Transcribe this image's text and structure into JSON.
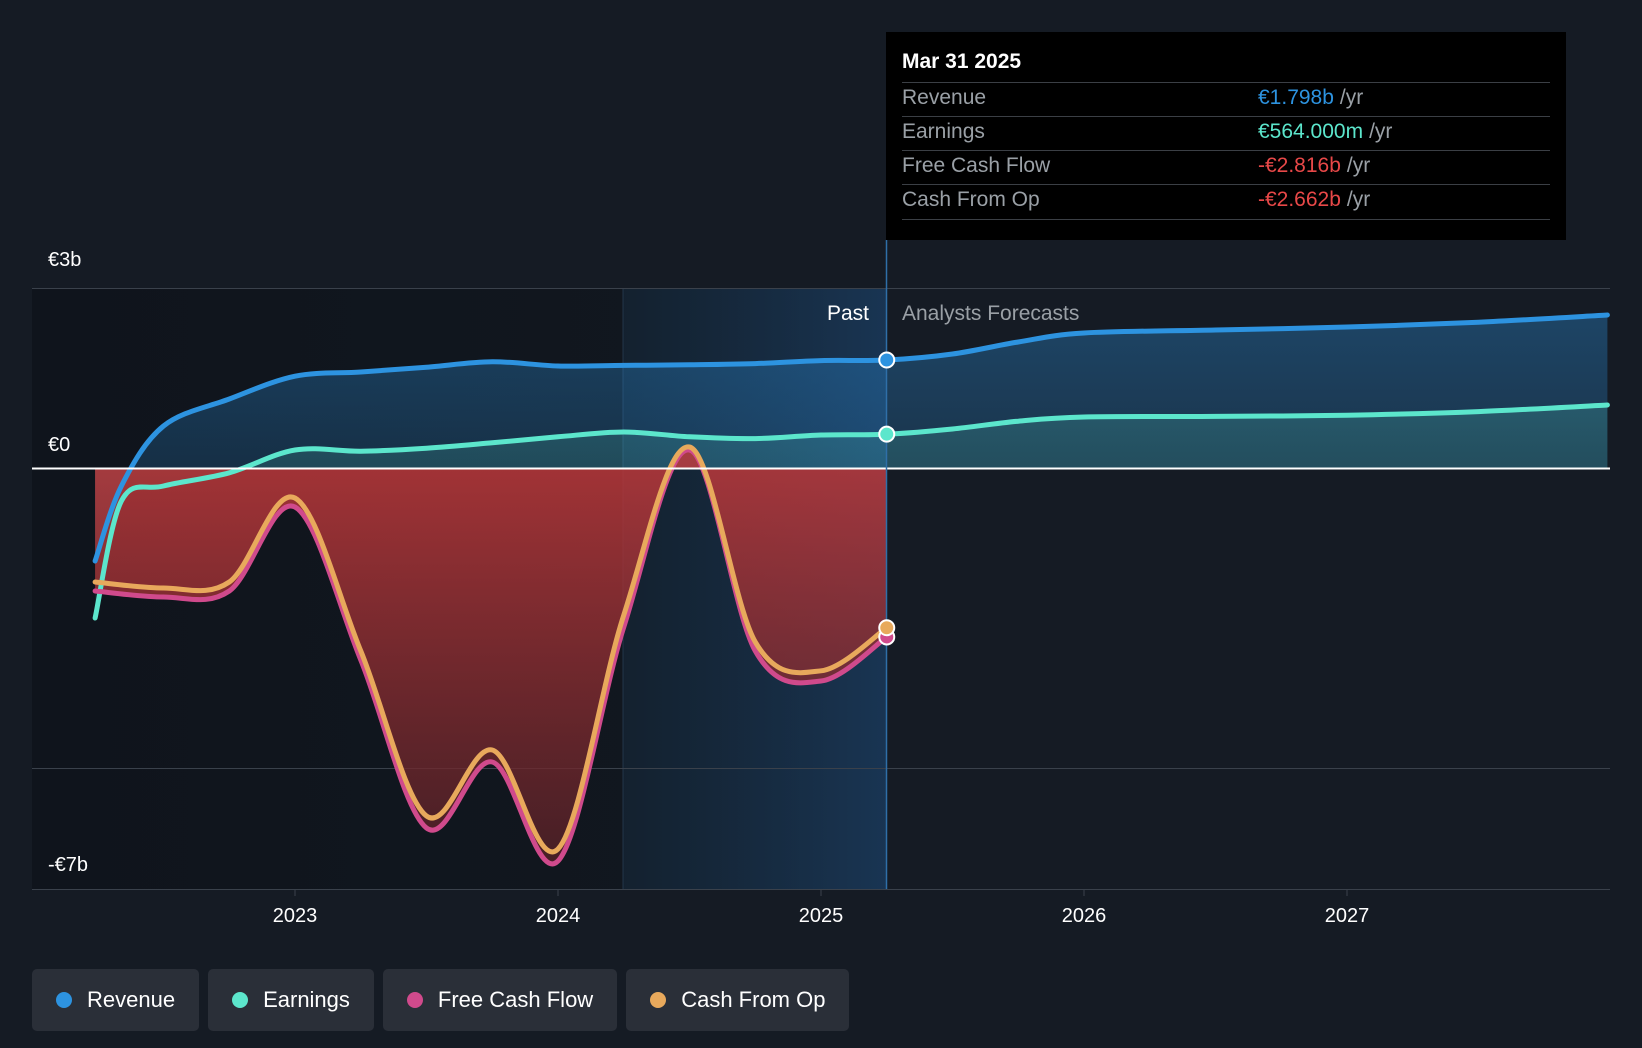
{
  "chart_data": {
    "type": "line",
    "x_ticks": [
      "2023",
      "2024",
      "2025",
      "2026",
      "2027"
    ],
    "y_labels": {
      "top": "€3b",
      "zero": "€0",
      "bottom": "-€7b"
    },
    "ylim": [
      -7,
      3
    ],
    "past_label": "Past",
    "forecast_label": "Analysts Forecasts",
    "series": [
      {
        "name": "Revenue",
        "color": "#2d93e0",
        "x": [
          2022.24,
          2022.34,
          2022.5,
          2022.75,
          2023.0,
          2023.25,
          2023.5,
          2023.75,
          2024.0,
          2024.25,
          2024.5,
          2024.75,
          2025.0,
          2025.25,
          2025.5,
          2025.75,
          2026.0,
          2026.5,
          2027.0,
          2027.5,
          2027.99
        ],
        "values": [
          -1.55,
          -0.3,
          0.7,
          1.15,
          1.53,
          1.6,
          1.68,
          1.77,
          1.7,
          1.71,
          1.72,
          1.74,
          1.79,
          1.8,
          1.9,
          2.1,
          2.25,
          2.3,
          2.35,
          2.43,
          2.55
        ]
      },
      {
        "name": "Earnings",
        "color": "#5ce6cc",
        "x": [
          2022.24,
          2022.34,
          2022.5,
          2022.75,
          2023.0,
          2023.25,
          2023.5,
          2023.75,
          2024.0,
          2024.25,
          2024.5,
          2024.75,
          2025.0,
          2025.25,
          2025.5,
          2025.75,
          2026.0,
          2026.5,
          2027.0,
          2027.5,
          2027.99
        ],
        "values": [
          -2.5,
          -0.55,
          -0.3,
          -0.08,
          0.3,
          0.28,
          0.33,
          0.42,
          0.52,
          0.6,
          0.52,
          0.49,
          0.55,
          0.564,
          0.65,
          0.78,
          0.85,
          0.86,
          0.88,
          0.94,
          1.05
        ]
      },
      {
        "name": "Free Cash Flow",
        "color": "#d04a8c",
        "x": [
          2022.24,
          2022.5,
          2022.75,
          2023.0,
          2023.25,
          2023.5,
          2023.75,
          2024.0,
          2024.25,
          2024.5,
          2024.75,
          2025.0,
          2025.25
        ],
        "values": [
          -2.05,
          -2.15,
          -2.05,
          -0.65,
          -3.2,
          -6.0,
          -4.9,
          -6.55,
          -2.65,
          0.3,
          -3.05,
          -3.55,
          -2.816
        ]
      },
      {
        "name": "Cash From Op",
        "color": "#e8a95c",
        "x": [
          2022.24,
          2022.5,
          2022.75,
          2023.0,
          2023.25,
          2023.5,
          2023.75,
          2024.0,
          2024.25,
          2024.5,
          2024.75,
          2025.0,
          2025.25
        ],
        "values": [
          -1.9,
          -2.0,
          -1.9,
          -0.5,
          -3.05,
          -5.8,
          -4.7,
          -6.35,
          -2.45,
          0.35,
          -2.9,
          -3.38,
          -2.662
        ]
      }
    ]
  },
  "tooltip": {
    "date": "Mar 31 2025",
    "rows": [
      {
        "label": "Revenue",
        "value": "€1.798b",
        "unit": "/yr",
        "color": "#2d93e0"
      },
      {
        "label": "Earnings",
        "value": "€564.000m",
        "unit": "/yr",
        "color": "#5ce6cc"
      },
      {
        "label": "Free Cash Flow",
        "value": "-€2.816b",
        "unit": "/yr",
        "color": "#e84848"
      },
      {
        "label": "Cash From Op",
        "value": "-€2.662b",
        "unit": "/yr",
        "color": "#e84848"
      }
    ]
  },
  "legend": [
    {
      "label": "Revenue",
      "color": "#2d93e0"
    },
    {
      "label": "Earnings",
      "color": "#5ce6cc"
    },
    {
      "label": "Free Cash Flow",
      "color": "#d04a8c"
    },
    {
      "label": "Cash From Op",
      "color": "#e8a95c"
    }
  ]
}
